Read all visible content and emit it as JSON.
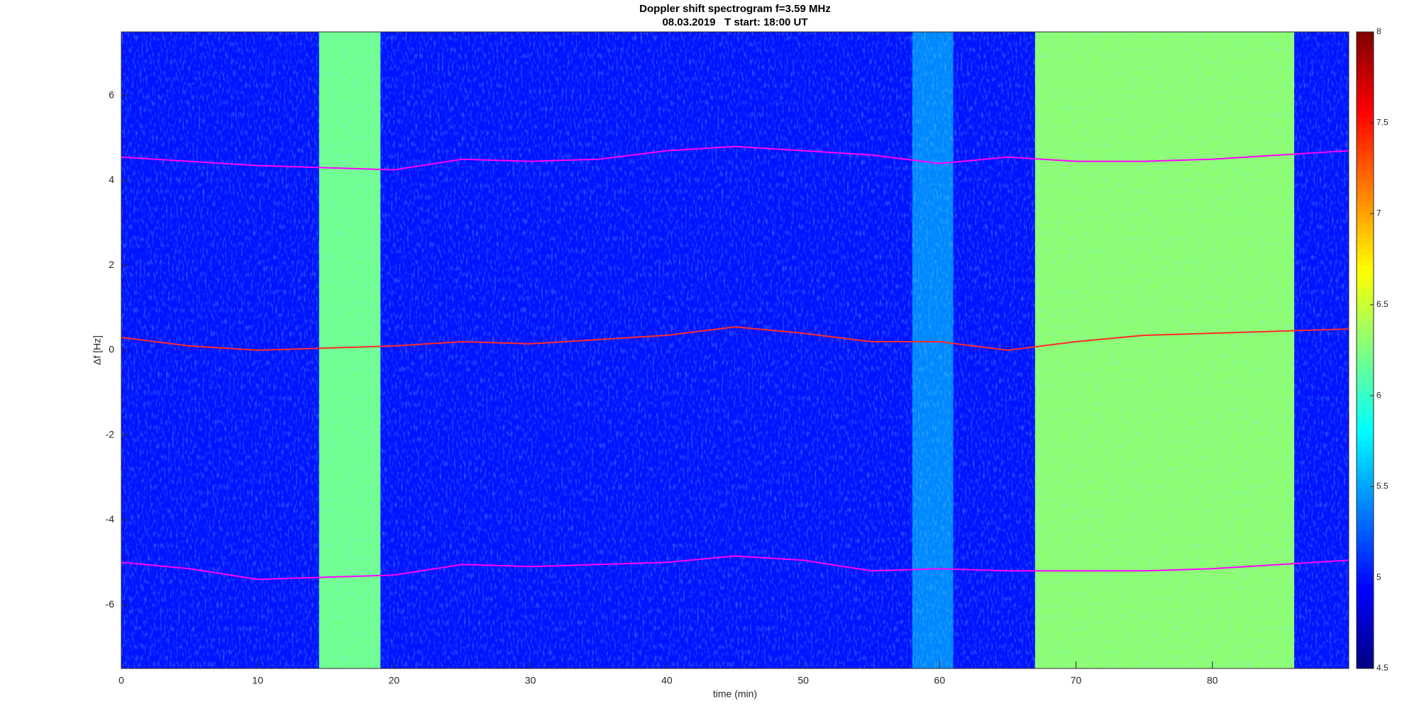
{
  "chart_data": {
    "type": "spectrogram",
    "title": "Doppler shift spectrogram f=3.59 MHz",
    "subtitle": "08.03.2019   T start: 18:00 UT",
    "xlabel": "time (min)",
    "ylabel": "Δf [Hz]",
    "xlim": [
      0,
      90
    ],
    "ylim": [
      -7.5,
      7.5
    ],
    "xticks": [
      0,
      10,
      20,
      30,
      40,
      50,
      60,
      70,
      80
    ],
    "yticks": [
      -6,
      -4,
      -2,
      0,
      2,
      4,
      6
    ],
    "clim": [
      4.5,
      8
    ],
    "cticks": [
      4.5,
      5,
      5.5,
      6,
      6.5,
      7,
      7.5,
      8
    ],
    "colormap": "jet",
    "background_level": 5.0,
    "bands": [
      {
        "x": [
          14.5,
          19
        ],
        "level": 6.2
      },
      {
        "x": [
          58,
          61
        ],
        "level": 5.4
      },
      {
        "x": [
          67,
          86
        ],
        "level": 6.3
      }
    ],
    "x": [
      0,
      5,
      10,
      15,
      20,
      25,
      30,
      35,
      40,
      45,
      50,
      55,
      60,
      65,
      70,
      75,
      80,
      85,
      90
    ],
    "series": [
      {
        "color": "#ff00ff",
        "values": [
          4.55,
          4.45,
          4.35,
          4.3,
          4.25,
          4.5,
          4.45,
          4.5,
          4.7,
          4.8,
          4.7,
          4.6,
          4.4,
          4.55,
          4.45,
          4.45,
          4.5,
          4.6,
          4.7
        ]
      },
      {
        "color": "#ff2a2a",
        "values": [
          0.3,
          0.1,
          0.0,
          0.05,
          0.1,
          0.2,
          0.15,
          0.25,
          0.35,
          0.55,
          0.4,
          0.2,
          0.2,
          0.0,
          0.2,
          0.35,
          0.4,
          0.45,
          0.5
        ]
      },
      {
        "color": "#ff00ff",
        "values": [
          -5.0,
          -5.15,
          -5.4,
          -5.35,
          -5.3,
          -5.05,
          -5.1,
          -5.05,
          -5.0,
          -4.85,
          -4.95,
          -5.2,
          -5.15,
          -5.2,
          -5.2,
          -5.2,
          -5.15,
          -5.05,
          -4.95
        ]
      }
    ]
  }
}
